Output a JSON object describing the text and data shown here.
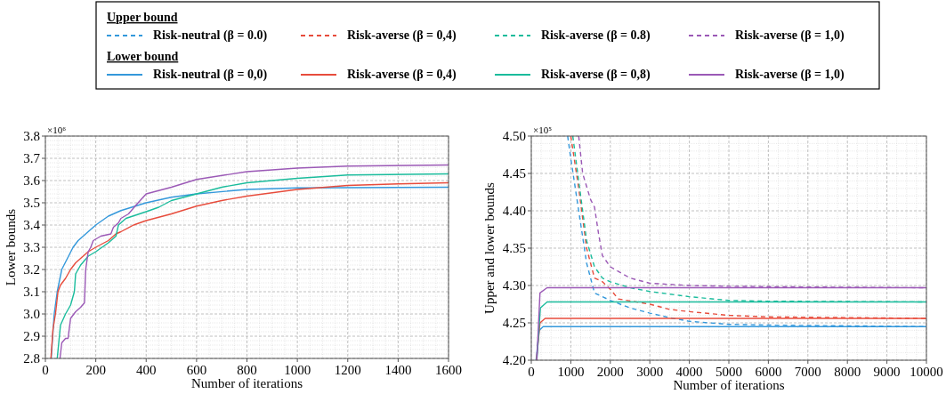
{
  "chart_data": [
    {
      "type": "line",
      "ylabel": "Lower bounds",
      "xlabel": "Number of iterations",
      "xlim": [
        0,
        1600
      ],
      "xticks": [
        0,
        200,
        400,
        600,
        800,
        1000,
        1200,
        1400,
        1600
      ],
      "ylim": [
        2.8,
        3.8
      ],
      "yticks": [
        {
          "value": 2.8,
          "label": "2.8"
        },
        {
          "value": 2.9,
          "label": "2.9"
        },
        {
          "value": 3.0,
          "label": "3.0"
        },
        {
          "value": 3.1,
          "label": "3.1"
        },
        {
          "value": 3.2,
          "label": "3.2"
        },
        {
          "value": 3.3,
          "label": "3.3"
        },
        {
          "value": 3.4,
          "label": "3.4"
        },
        {
          "value": 3.5,
          "label": "3.5"
        },
        {
          "value": 3.6,
          "label": "3.6"
        },
        {
          "value": 3.7,
          "label": "3.7"
        },
        {
          "value": 3.8,
          "label": "3.8"
        }
      ],
      "grid": true,
      "legend": false,
      "annotations": [
        "×10⁶"
      ],
      "series": [
        {
          "color": "#3498db",
          "x": [
            23,
            35,
            47,
            65,
            110,
            130,
            170,
            200,
            250,
            300,
            400,
            500,
            600,
            800,
            1000,
            1600
          ],
          "values": [
            2.8,
            3.0,
            3.1,
            3.2,
            3.3,
            3.33,
            3.37,
            3.4,
            3.44,
            3.465,
            3.5,
            3.525,
            3.54,
            3.56,
            3.567,
            3.57
          ]
        },
        {
          "color": "#e74c3c",
          "x": [
            22,
            30,
            40,
            50,
            60,
            80,
            100,
            120,
            150,
            170,
            200,
            250,
            280,
            300,
            350,
            400,
            500,
            600,
            700,
            800,
            1000,
            1200,
            1400,
            1600
          ],
          "values": [
            2.8,
            2.93,
            3.0,
            3.1,
            3.13,
            3.16,
            3.2,
            3.23,
            3.26,
            3.28,
            3.3,
            3.33,
            3.36,
            3.37,
            3.4,
            3.42,
            3.45,
            3.485,
            3.51,
            3.53,
            3.56,
            3.578,
            3.585,
            3.59
          ]
        },
        {
          "color": "#1abc9c",
          "x": [
            47,
            60,
            80,
            100,
            115,
            120,
            140,
            170,
            200,
            250,
            280,
            290,
            320,
            400,
            450,
            500,
            600,
            700,
            800,
            1000,
            1200,
            1600
          ],
          "values": [
            2.8,
            2.95,
            3.0,
            3.04,
            3.1,
            3.18,
            3.22,
            3.26,
            3.28,
            3.32,
            3.35,
            3.4,
            3.43,
            3.46,
            3.48,
            3.51,
            3.54,
            3.57,
            3.59,
            3.61,
            3.625,
            3.63
          ]
        },
        {
          "color": "#9b59b6",
          "x": [
            58,
            65,
            80,
            90,
            100,
            120,
            140,
            155,
            160,
            170,
            180,
            190,
            220,
            260,
            270,
            290,
            300,
            330,
            360,
            400,
            500,
            600,
            800,
            1000,
            1200,
            1600
          ],
          "values": [
            2.8,
            2.87,
            2.89,
            2.89,
            2.98,
            3.01,
            3.03,
            3.05,
            3.2,
            3.28,
            3.3,
            3.33,
            3.35,
            3.36,
            3.39,
            3.41,
            3.43,
            3.45,
            3.49,
            3.54,
            3.57,
            3.605,
            3.64,
            3.656,
            3.665,
            3.67
          ]
        }
      ]
    },
    {
      "type": "line",
      "ylabel": "Upper and lower bounds",
      "xlabel": "Number of iterations",
      "xlim": [
        0,
        10000
      ],
      "xticks": [
        0,
        1000,
        2000,
        3000,
        4000,
        5000,
        6000,
        7000,
        8000,
        9000,
        10000
      ],
      "ylim": [
        4.2,
        4.5
      ],
      "yticks": [
        {
          "value": 4.2,
          "label": "4.20"
        },
        {
          "value": 4.25,
          "label": "4.25"
        },
        {
          "value": 4.3,
          "label": "4.30"
        },
        {
          "value": 4.35,
          "label": "4.35"
        },
        {
          "value": 4.4,
          "label": "4.40"
        },
        {
          "value": 4.45,
          "label": "4.45"
        },
        {
          "value": 4.5,
          "label": "4.50"
        }
      ],
      "grid": true,
      "legend": "top",
      "annotations": [
        "×10⁵",
        "Upper bound",
        "Lower bound"
      ],
      "series": [
        {
          "name": "Risk-neutral (β = 0.0)",
          "color": "#3498db",
          "line_style": "dashed",
          "x": [
            920,
            1000,
            1200,
            1400,
            1600,
            1800,
            2000,
            2500,
            3000,
            3500,
            4000,
            5000,
            6000,
            8000,
            10000
          ],
          "values": [
            4.5,
            4.47,
            4.4,
            4.33,
            4.29,
            4.285,
            4.28,
            4.27,
            4.263,
            4.257,
            4.252,
            4.248,
            4.247,
            4.246,
            4.245
          ]
        },
        {
          "name": "Risk-averse (β = 0,4)",
          "color": "#e74c3c",
          "line_style": "dashed",
          "x": [
            1000,
            1200,
            1400,
            1600,
            1800,
            2000,
            2200,
            3000,
            3500,
            4000,
            5000,
            6000,
            8000,
            10000
          ],
          "values": [
            4.5,
            4.43,
            4.35,
            4.31,
            4.305,
            4.295,
            4.282,
            4.275,
            4.268,
            4.265,
            4.26,
            4.258,
            4.257,
            4.256
          ]
        },
        {
          "name": "Risk-averse (β = 0.8)",
          "color": "#1abc9c",
          "line_style": "dashed",
          "x": [
            1050,
            1200,
            1400,
            1600,
            1800,
            2000,
            2500,
            3000,
            4000,
            5000,
            6000,
            10000
          ],
          "values": [
            4.5,
            4.44,
            4.36,
            4.325,
            4.31,
            4.305,
            4.297,
            4.292,
            4.285,
            4.28,
            4.279,
            4.278
          ]
        },
        {
          "name": "Risk-averse (β = 1,0)",
          "color": "#9b59b6",
          "line_style": "dashed",
          "x": [
            1200,
            1300,
            1500,
            1600,
            1700,
            1800,
            2000,
            2500,
            3000,
            4000,
            5000,
            7000,
            10000
          ],
          "values": [
            4.5,
            4.45,
            4.415,
            4.405,
            4.37,
            4.34,
            4.325,
            4.31,
            4.303,
            4.3,
            4.299,
            4.298,
            4.297
          ]
        },
        {
          "name": "Risk-neutral (β = 0,0)",
          "color": "#3498db",
          "line_style": "solid",
          "x": [
            120,
            200,
            300,
            10000
          ],
          "values": [
            4.2,
            4.24,
            4.245,
            4.245
          ]
        },
        {
          "name": "Risk-averse (β = 0,4)",
          "color": "#e74c3c",
          "line_style": "solid",
          "x": [
            130,
            220,
            350,
            10000
          ],
          "values": [
            4.2,
            4.25,
            4.256,
            4.256
          ]
        },
        {
          "name": "Risk-averse (β = 0,8)",
          "color": "#1abc9c",
          "line_style": "solid",
          "x": [
            140,
            230,
            400,
            10000
          ],
          "values": [
            4.2,
            4.27,
            4.278,
            4.278
          ]
        },
        {
          "name": "Risk-averse (β = 1,0)",
          "color": "#9b59b6",
          "line_style": "solid",
          "x": [
            140,
            220,
            400,
            10000
          ],
          "values": [
            4.2,
            4.29,
            4.297,
            4.297
          ]
        }
      ]
    }
  ]
}
